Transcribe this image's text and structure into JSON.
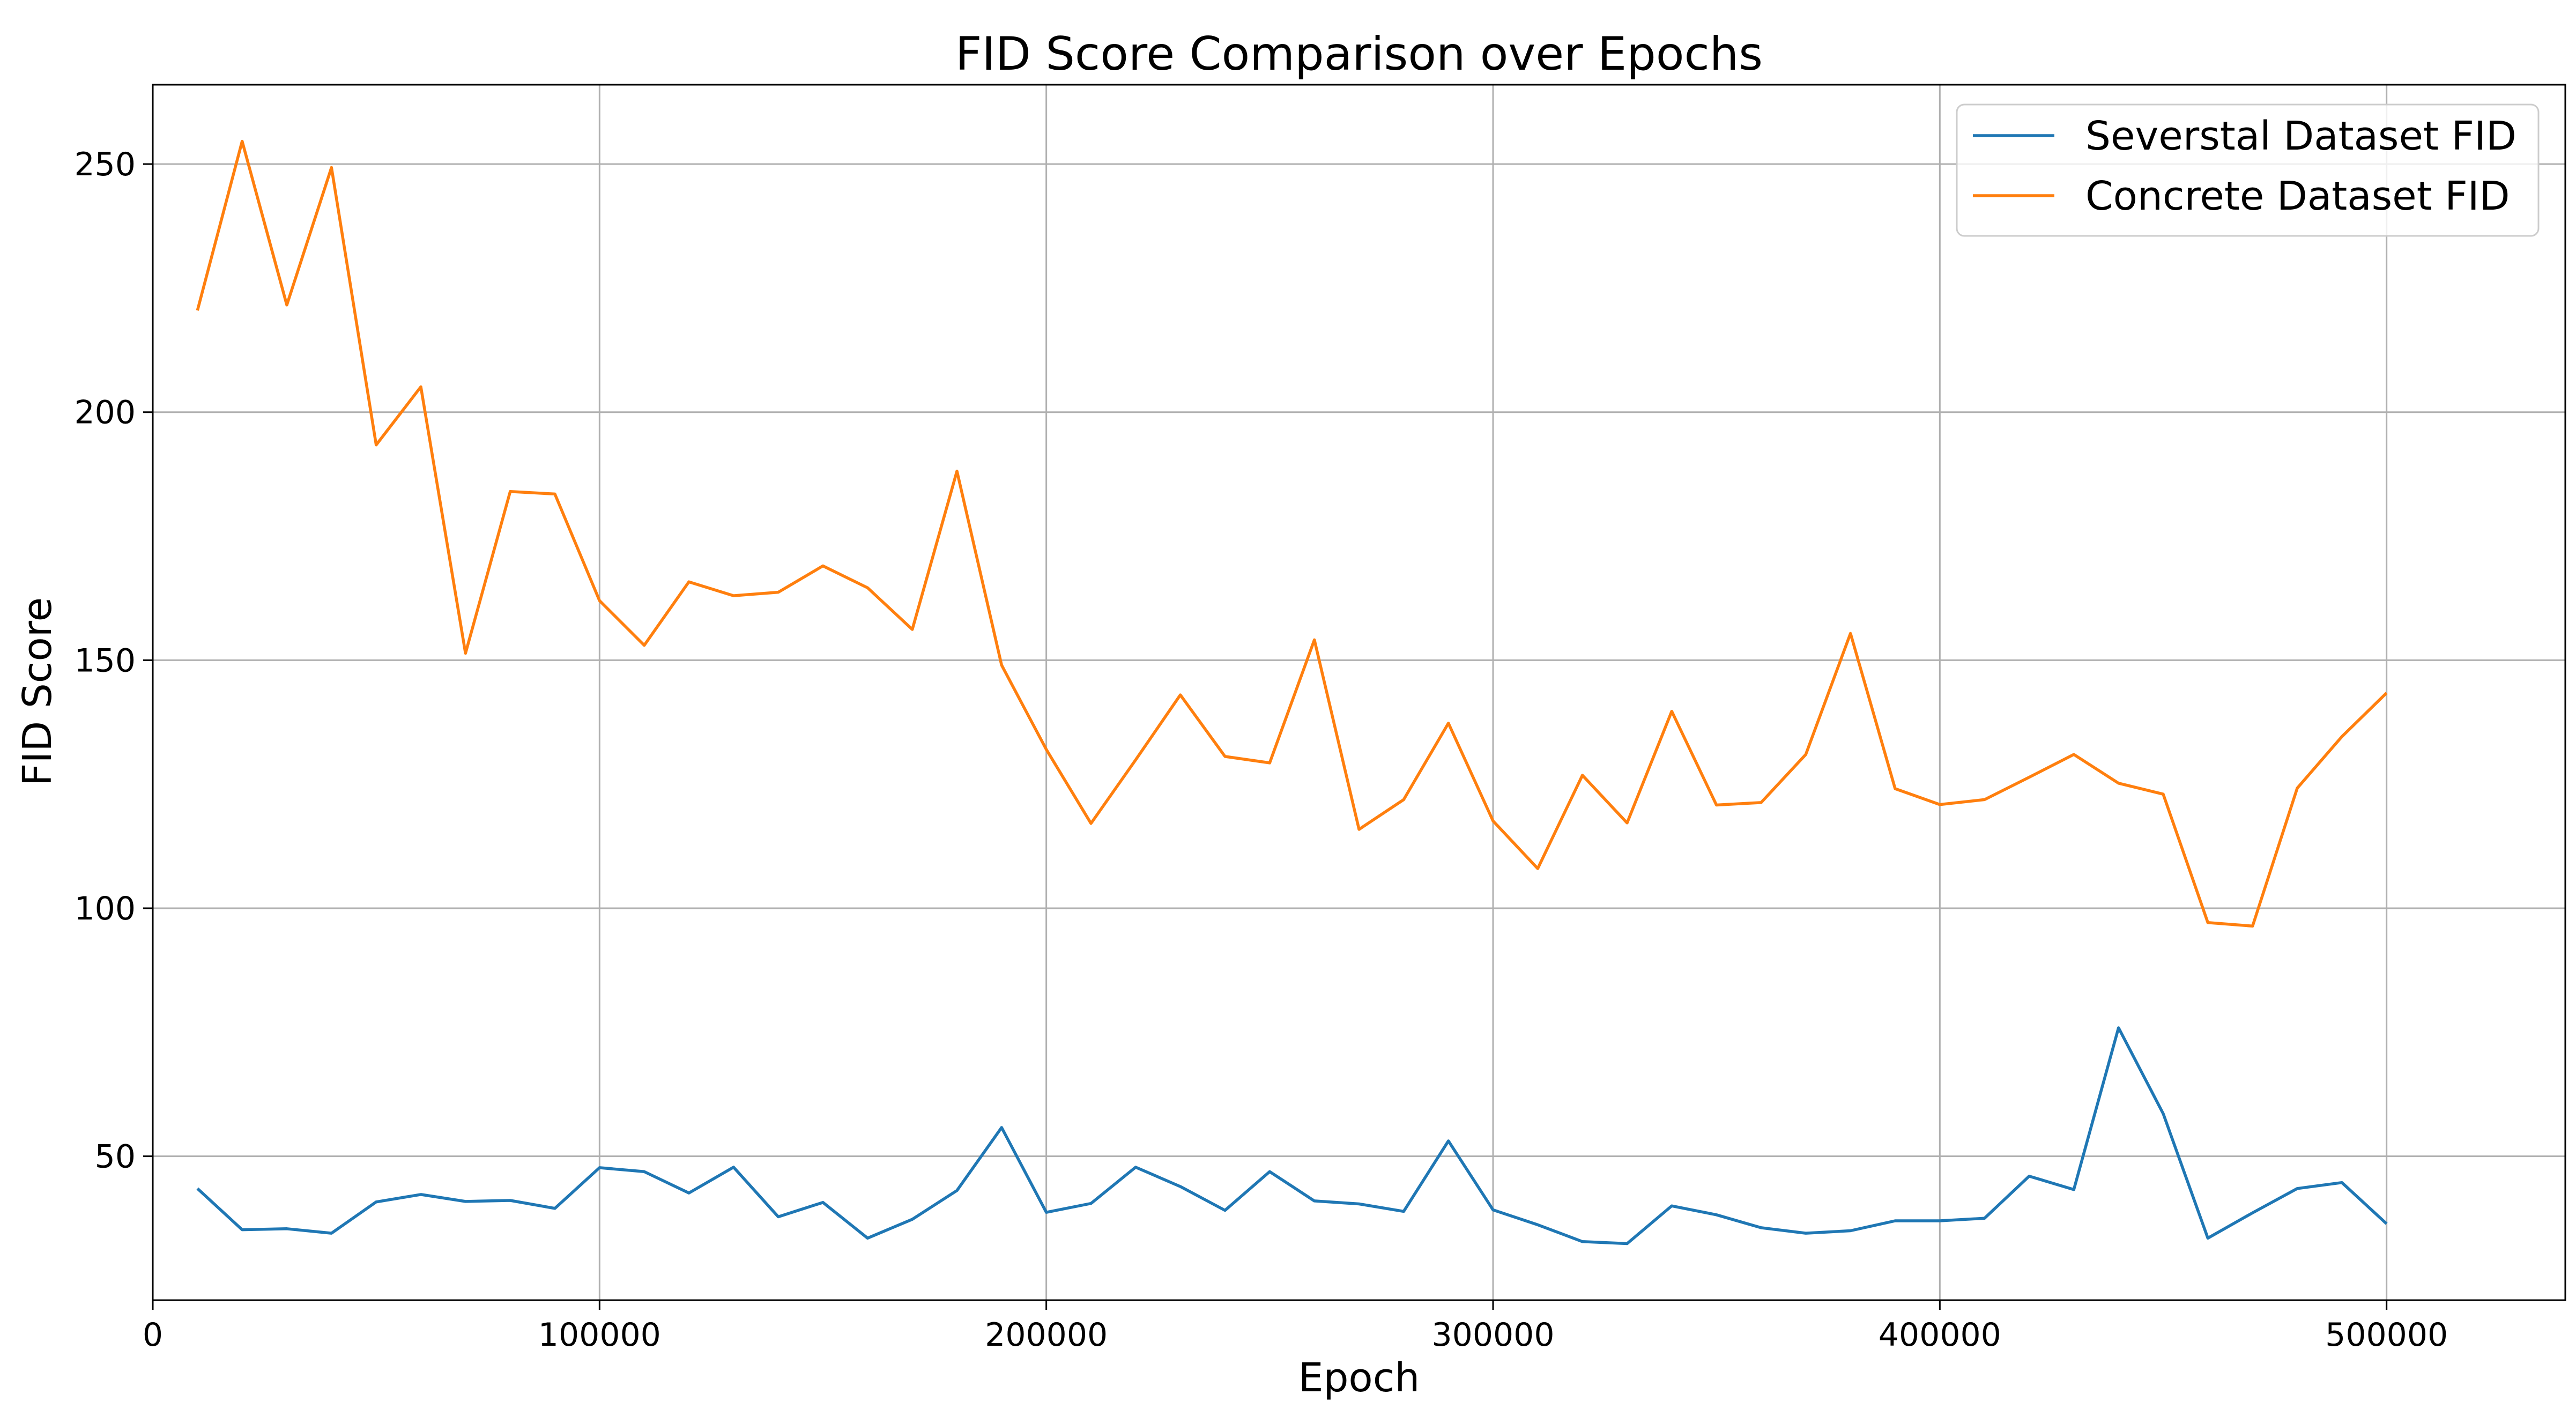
{
  "chart_data": {
    "type": "line",
    "title": "FID Score Comparison over Epochs",
    "xlabel": "Epoch",
    "ylabel": "FID Score",
    "xlim": [
      0,
      540000
    ],
    "ylim": [
      21,
      266
    ],
    "grid": true,
    "legend_position": "top-right",
    "x_ticks": [
      0,
      100000,
      200000,
      300000,
      400000,
      500000
    ],
    "y_ticks": [
      50,
      100,
      150,
      200,
      250
    ],
    "x": [
      10000,
      20000,
      30000,
      40000,
      50000,
      60000,
      70000,
      80000,
      90000,
      100000,
      110000,
      120000,
      130000,
      140000,
      150000,
      160000,
      170000,
      180000,
      190000,
      200000,
      210000,
      220000,
      230000,
      240000,
      250000,
      260000,
      270000,
      280000,
      290000,
      300000,
      310000,
      320000,
      330000,
      340000,
      350000,
      360000,
      370000,
      380000,
      390000,
      400000,
      410000,
      420000,
      430000,
      440000,
      450000,
      460000,
      470000,
      480000,
      490000,
      500000
    ],
    "series": [
      {
        "name": "Severstal Dataset FID",
        "color": "#1f77b4",
        "values": [
          43.5,
          35.2,
          35.4,
          34.5,
          40.8,
          42.3,
          40.9,
          41.1,
          39.5,
          47.7,
          46.9,
          42.6,
          47.8,
          37.8,
          40.7,
          33.5,
          37.3,
          43.1,
          55.8,
          38.7,
          40.5,
          47.8,
          43.9,
          39.1,
          46.9,
          41.0,
          40.4,
          38.9,
          53.1,
          39.2,
          36.2,
          32.8,
          32.4,
          40.0,
          38.2,
          35.6,
          34.5,
          35.0,
          37.0,
          37.0,
          37.5,
          46.0,
          43.3,
          75.9,
          58.6,
          33.5,
          38.6,
          43.5,
          44.7,
          36.4
        ]
      },
      {
        "name": "Concrete Dataset FID",
        "color": "#ff7f0e",
        "values": [
          220.5,
          254.6,
          221.6,
          249.3,
          193.4,
          205.1,
          151.4,
          184.0,
          183.5,
          162.0,
          153.0,
          165.8,
          163.0,
          163.7,
          169.0,
          164.6,
          156.2,
          188.1,
          149.0,
          132.0,
          117.1,
          129.9,
          143.0,
          130.6,
          129.3,
          154.1,
          115.9,
          121.9,
          137.3,
          117.6,
          108.0,
          126.8,
          117.2,
          139.7,
          120.8,
          121.3,
          131.0,
          155.4,
          124.1,
          120.9,
          121.9,
          126.4,
          131.0,
          125.2,
          123.0,
          97.1,
          96.4,
          124.2,
          134.6,
          143.4
        ]
      }
    ]
  }
}
